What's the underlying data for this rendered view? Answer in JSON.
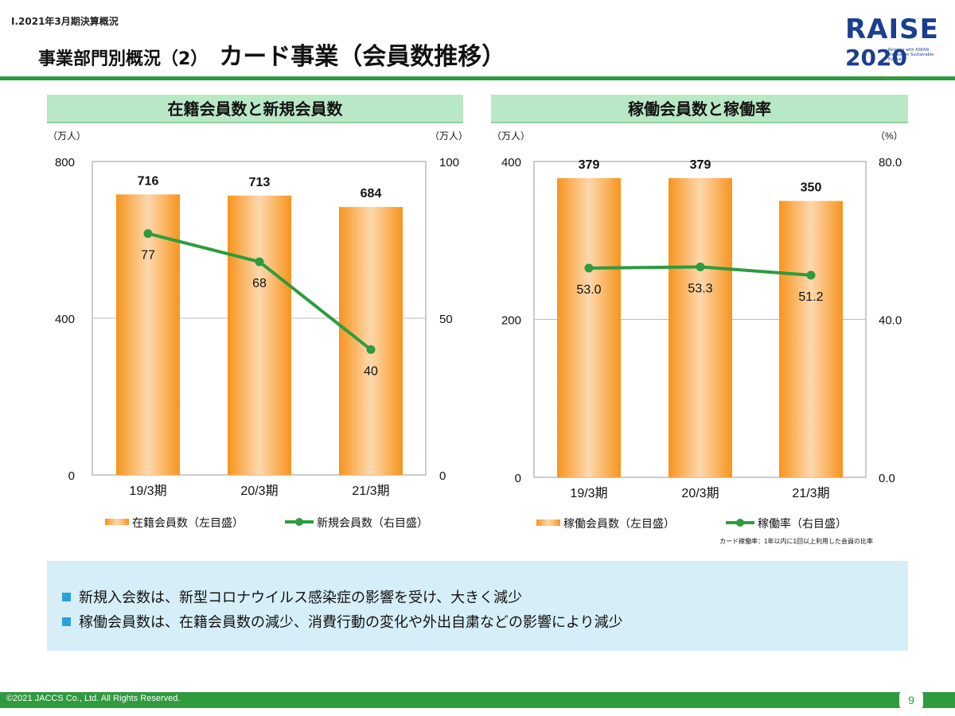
{
  "header": {
    "section_label": "Ⅰ.2021年3月期決算概況",
    "title_prefix": "事業部門別概況（2）",
    "title_main": "カード事業（会員数推移）"
  },
  "logo": {
    "word": "RAISE",
    "year": "2020",
    "tagline": "Relation with ASEAN Innovation Sustainable Evolve"
  },
  "colors": {
    "accent_green": "#2e9b3e",
    "bar_orange": "#f7941d",
    "line_green": "#2e9b3e",
    "panel_green": "#b9e8c6",
    "note_blue": "#d6eef8"
  },
  "chart_data": [
    {
      "type": "bar",
      "title": "在籍会員数と新規会員数",
      "left_unit": "（万人）",
      "right_unit": "（万人）",
      "categories": [
        "19/3期",
        "20/3期",
        "21/3期"
      ],
      "y_left_range": [
        0,
        800
      ],
      "y_left_ticks": [
        "0",
        "400",
        "800"
      ],
      "y_right_range": [
        0,
        100
      ],
      "y_right_ticks": [
        "0",
        "50",
        "100"
      ],
      "series": [
        {
          "name": "在籍会員数（左目盛）",
          "type": "bar",
          "axis": "left",
          "values": [
            716,
            713,
            684
          ],
          "labels": [
            "716",
            "713",
            "684"
          ]
        },
        {
          "name": "新規会員数（右目盛）",
          "type": "line",
          "axis": "right",
          "values": [
            77,
            68,
            40
          ],
          "labels": [
            "77",
            "68",
            "40"
          ]
        }
      ]
    },
    {
      "type": "bar",
      "title": "稼働会員数と稼働率",
      "left_unit": "（万人）",
      "right_unit": "（%）",
      "categories": [
        "19/3期",
        "20/3期",
        "21/3期"
      ],
      "y_left_range": [
        0,
        400
      ],
      "y_left_ticks": [
        "0",
        "200",
        "400"
      ],
      "y_right_range": [
        0,
        80
      ],
      "y_right_ticks": [
        "0.0",
        "40.0",
        "80.0"
      ],
      "series": [
        {
          "name": "稼働会員数（左目盛）",
          "type": "bar",
          "axis": "left",
          "values": [
            379,
            379,
            350
          ],
          "labels": [
            "379",
            "379",
            "350"
          ]
        },
        {
          "name": "稼働率（右目盛）",
          "type": "line",
          "axis": "right",
          "values": [
            53.0,
            53.3,
            51.2
          ],
          "labels": [
            "53.0",
            "53.3",
            "51.2"
          ]
        }
      ],
      "footnote": "カード稼働率：1年以内に1回以上利用した会員の比率"
    }
  ],
  "notes": [
    "新規入会数は、新型コロナウイルス感染症の影響を受け、大きく減少",
    "稼働会員数は、在籍会員数の減少、消費行動の変化や外出自粛などの影響により減少"
  ],
  "footer": {
    "copyright": "©2021 JACCS Co., Ltd. All Rights Reserved.",
    "page_number": "9"
  }
}
